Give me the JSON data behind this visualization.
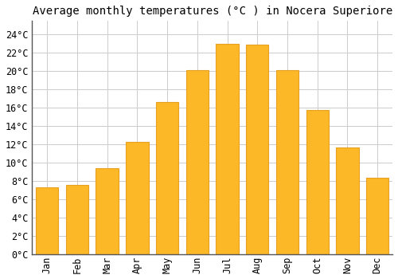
{
  "title": "Average monthly temperatures (°C ) in Nocera Superiore",
  "months": [
    "Jan",
    "Feb",
    "Mar",
    "Apr",
    "May",
    "Jun",
    "Jul",
    "Aug",
    "Sep",
    "Oct",
    "Nov",
    "Dec"
  ],
  "values": [
    7.3,
    7.6,
    9.4,
    12.3,
    16.6,
    20.1,
    23.0,
    22.9,
    20.1,
    15.8,
    11.7,
    8.4
  ],
  "bar_color": "#FDB827",
  "bar_edge_color": "#E8A020",
  "background_color": "#FFFFFF",
  "grid_color": "#CCCCCC",
  "yticks": [
    0,
    2,
    4,
    6,
    8,
    10,
    12,
    14,
    16,
    18,
    20,
    22,
    24
  ],
  "ylim": [
    0,
    25.5
  ],
  "title_fontsize": 10,
  "tick_fontsize": 8.5,
  "font_family": "monospace",
  "bar_width": 0.75
}
